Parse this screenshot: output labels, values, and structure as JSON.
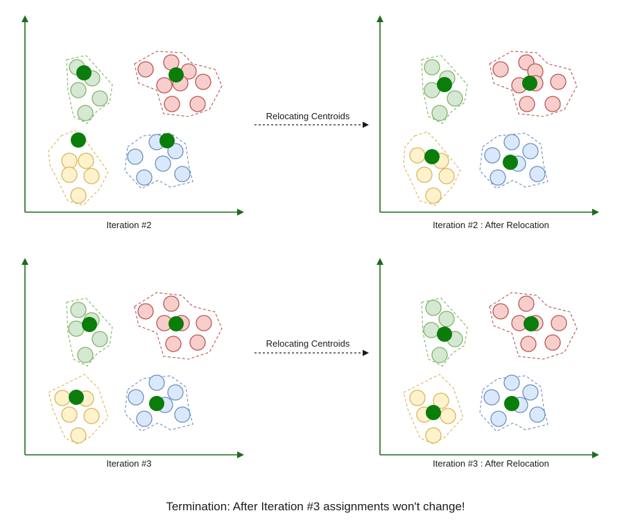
{
  "panels": [
    {
      "caption": "Iteration #2"
    },
    {
      "caption": "Iteration #2 : After Relocation"
    },
    {
      "caption": "Iteration #3"
    },
    {
      "caption": "Iteration #3 : After Relocation"
    }
  ],
  "transitions": [
    {
      "label": "Relocating Centroids"
    },
    {
      "label": "Relocating Centroids"
    }
  ],
  "footer": {
    "text": "Termination: After Iteration #3 assignments won't change!"
  },
  "colors": {
    "axis": "#1e6b1e",
    "centroid": "#0a7d0a",
    "green_fill": "#d5e8d4",
    "green_stroke": "#82b366",
    "red_fill": "#f8cecc",
    "red_stroke": "#b85450",
    "yellow_fill": "#fff2cc",
    "yellow_stroke": "#d6b656",
    "blue_fill": "#dae8fc",
    "blue_stroke": "#6c8ebf",
    "arrow": "#1a1a1a"
  }
}
